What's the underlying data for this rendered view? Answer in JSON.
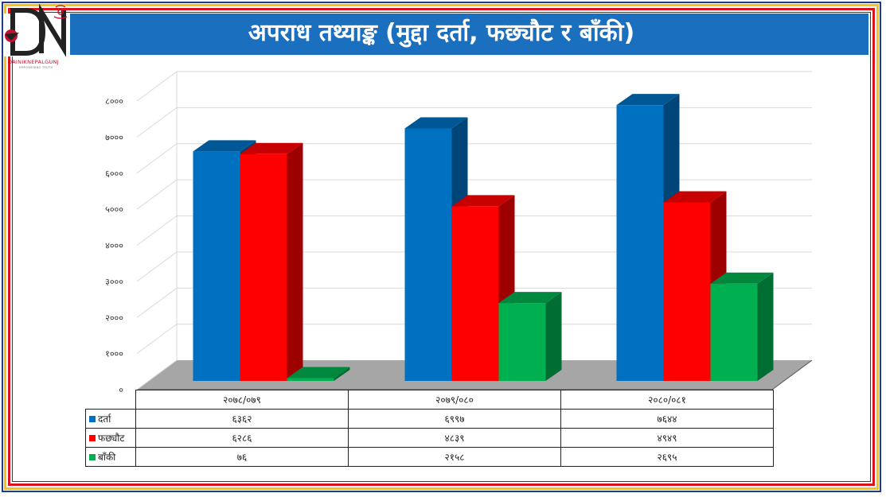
{
  "title": "अपराध तथ्याङ्क (मुद्दा दर्ता, फछ्यौट र बाँकी)",
  "logo": {
    "name": "DAINIKNEPALGUNJ",
    "tagline": "EMPOWERING TRUTH"
  },
  "colors": {
    "title_bg": "#1a6fbf",
    "darta": "#0070c0",
    "fachhyaut": "#ff0000",
    "baaki": "#00b050"
  },
  "chart_data": {
    "type": "bar",
    "categories": [
      "२०७८/०७९",
      "२०७९/०८०",
      "२०८०/०८१"
    ],
    "series": [
      {
        "name": "दर्ता",
        "values": [
          6362,
          6997,
          7644
        ],
        "value_labels": [
          "६३६२",
          "६९९७",
          "७६४४"
        ],
        "color": "#0070c0"
      },
      {
        "name": "फछ्यौट",
        "values": [
          6286,
          4839,
          4949
        ],
        "value_labels": [
          "६२८६",
          "४८३९",
          "४९४९"
        ],
        "color": "#ff0000"
      },
      {
        "name": "बाँकी",
        "values": [
          76,
          2158,
          2695
        ],
        "value_labels": [
          "७६",
          "२१५८",
          "२६९५"
        ],
        "color": "#00b050"
      }
    ],
    "ylim": [
      0,
      8000
    ],
    "yticks": [
      0,
      1000,
      2000,
      3000,
      4000,
      5000,
      6000,
      7000,
      8000
    ],
    "ytick_labels": [
      "०",
      "१०००",
      "२०००",
      "३०००",
      "४०००",
      "५०००",
      "६०००",
      "७०००",
      "८०००"
    ],
    "grid": true,
    "legend": "data table below chart"
  }
}
